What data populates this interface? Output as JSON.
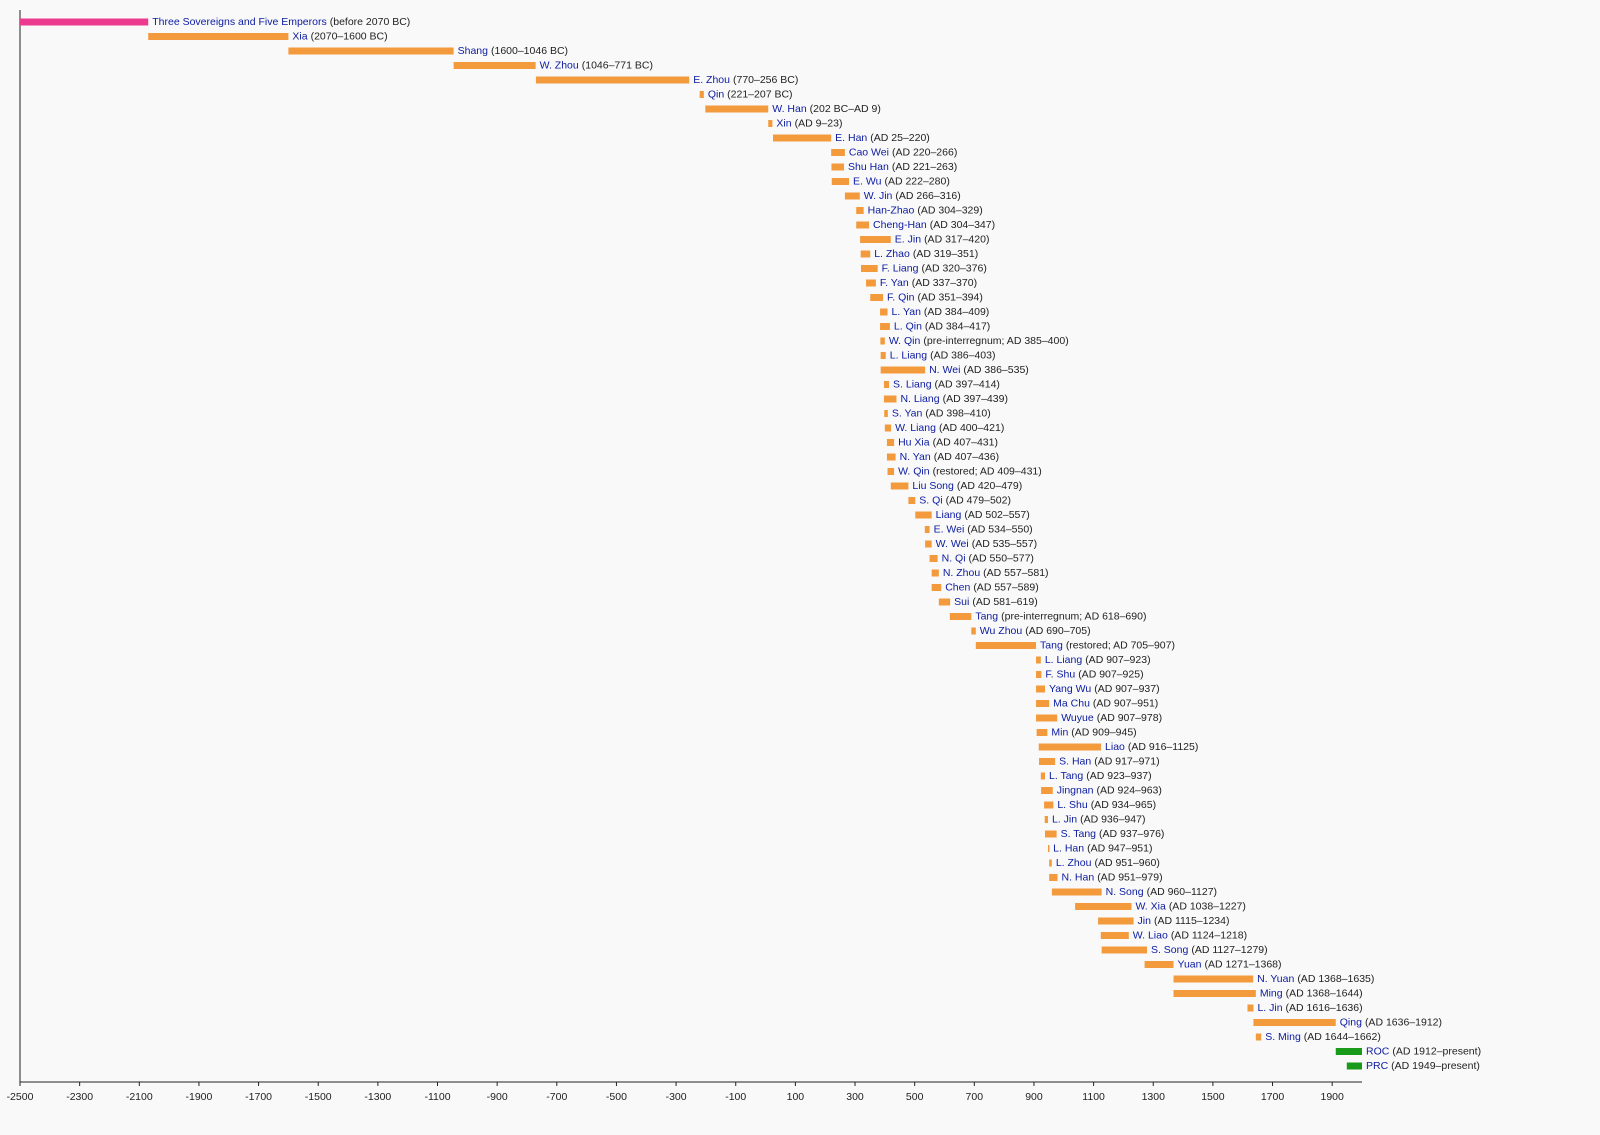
{
  "chart_data": {
    "type": "timeline",
    "xlim": [
      -2500,
      2000
    ],
    "xticks": [
      -2500,
      -2300,
      -2100,
      -1900,
      -1700,
      -1500,
      -1300,
      -1100,
      -900,
      -700,
      -500,
      -300,
      -100,
      100,
      300,
      500,
      700,
      900,
      1100,
      1300,
      1500,
      1700,
      1900
    ],
    "rows": [
      {
        "name": "Three Sovereigns and Five Emperors",
        "detail": "(before 2070 BC)",
        "start": -2500,
        "end": -2070,
        "color": "#ec3a8e"
      },
      {
        "name": "Xia",
        "detail": "(2070–1600 BC)",
        "start": -2070,
        "end": -1600,
        "color": "#f39a3c"
      },
      {
        "name": "Shang",
        "detail": "(1600–1046 BC)",
        "start": -1600,
        "end": -1046,
        "color": "#f39a3c"
      },
      {
        "name": "W. Zhou",
        "detail": "(1046–771 BC)",
        "start": -1046,
        "end": -771,
        "color": "#f39a3c"
      },
      {
        "name": "E. Zhou",
        "detail": "(770–256 BC)",
        "start": -770,
        "end": -256,
        "color": "#f39a3c"
      },
      {
        "name": "Qin",
        "detail": "(221–207 BC)",
        "start": -221,
        "end": -207,
        "color": "#f39a3c"
      },
      {
        "name": "W. Han",
        "detail": "(202 BC–AD 9)",
        "start": -202,
        "end": 9,
        "color": "#f39a3c"
      },
      {
        "name": "Xin",
        "detail": "(AD 9–23)",
        "start": 9,
        "end": 23,
        "color": "#f39a3c"
      },
      {
        "name": "E. Han",
        "detail": "(AD 25–220)",
        "start": 25,
        "end": 220,
        "color": "#f39a3c"
      },
      {
        "name": "Cao Wei",
        "detail": "(AD 220–266)",
        "start": 220,
        "end": 266,
        "color": "#f39a3c"
      },
      {
        "name": "Shu Han",
        "detail": "(AD 221–263)",
        "start": 221,
        "end": 263,
        "color": "#f39a3c"
      },
      {
        "name": "E. Wu",
        "detail": "(AD 222–280)",
        "start": 222,
        "end": 280,
        "color": "#f39a3c"
      },
      {
        "name": "W. Jin",
        "detail": "(AD 266–316)",
        "start": 266,
        "end": 316,
        "color": "#f39a3c"
      },
      {
        "name": "Han-Zhao",
        "detail": "(AD 304–329)",
        "start": 304,
        "end": 329,
        "color": "#f39a3c"
      },
      {
        "name": "Cheng-Han",
        "detail": "(AD 304–347)",
        "start": 304,
        "end": 347,
        "color": "#f39a3c"
      },
      {
        "name": "E. Jin",
        "detail": "(AD 317–420)",
        "start": 317,
        "end": 420,
        "color": "#f39a3c"
      },
      {
        "name": "L. Zhao",
        "detail": "(AD 319–351)",
        "start": 319,
        "end": 351,
        "color": "#f39a3c"
      },
      {
        "name": "F. Liang",
        "detail": "(AD 320–376)",
        "start": 320,
        "end": 376,
        "color": "#f39a3c"
      },
      {
        "name": "F. Yan",
        "detail": "(AD 337–370)",
        "start": 337,
        "end": 370,
        "color": "#f39a3c"
      },
      {
        "name": "F. Qin",
        "detail": "(AD 351–394)",
        "start": 351,
        "end": 394,
        "color": "#f39a3c"
      },
      {
        "name": "L. Yan",
        "detail": "(AD 384–409)",
        "start": 384,
        "end": 409,
        "color": "#f39a3c"
      },
      {
        "name": "L. Qin",
        "detail": "(AD 384–417)",
        "start": 384,
        "end": 417,
        "color": "#f39a3c"
      },
      {
        "name": "W. Qin",
        "detail": "(pre-interregnum; AD 385–400)",
        "start": 385,
        "end": 400,
        "color": "#f39a3c"
      },
      {
        "name": "L. Liang",
        "detail": "(AD 386–403)",
        "start": 386,
        "end": 403,
        "color": "#f39a3c"
      },
      {
        "name": "N. Wei",
        "detail": "(AD 386–535)",
        "start": 386,
        "end": 535,
        "color": "#f39a3c"
      },
      {
        "name": "S. Liang",
        "detail": "(AD 397–414)",
        "start": 397,
        "end": 414,
        "color": "#f39a3c"
      },
      {
        "name": "N. Liang",
        "detail": "(AD 397–439)",
        "start": 397,
        "end": 439,
        "color": "#f39a3c"
      },
      {
        "name": "S. Yan",
        "detail": "(AD 398–410)",
        "start": 398,
        "end": 410,
        "color": "#f39a3c"
      },
      {
        "name": "W. Liang",
        "detail": "(AD 400–421)",
        "start": 400,
        "end": 421,
        "color": "#f39a3c"
      },
      {
        "name": "Hu Xia",
        "detail": "(AD 407–431)",
        "start": 407,
        "end": 431,
        "color": "#f39a3c"
      },
      {
        "name": "N. Yan",
        "detail": "(AD 407–436)",
        "start": 407,
        "end": 436,
        "color": "#f39a3c"
      },
      {
        "name": "W. Qin",
        "detail": "(restored; AD 409–431)",
        "start": 409,
        "end": 431,
        "color": "#f39a3c"
      },
      {
        "name": "Liu Song",
        "detail": "(AD 420–479)",
        "start": 420,
        "end": 479,
        "color": "#f39a3c"
      },
      {
        "name": "S. Qi",
        "detail": "(AD 479–502)",
        "start": 479,
        "end": 502,
        "color": "#f39a3c"
      },
      {
        "name": "Liang",
        "detail": "(AD 502–557)",
        "start": 502,
        "end": 557,
        "color": "#f39a3c"
      },
      {
        "name": "E. Wei",
        "detail": "(AD 534–550)",
        "start": 534,
        "end": 550,
        "color": "#f39a3c"
      },
      {
        "name": "W. Wei",
        "detail": "(AD 535–557)",
        "start": 535,
        "end": 557,
        "color": "#f39a3c"
      },
      {
        "name": "N. Qi",
        "detail": "(AD 550–577)",
        "start": 550,
        "end": 577,
        "color": "#f39a3c"
      },
      {
        "name": "N. Zhou",
        "detail": "(AD 557–581)",
        "start": 557,
        "end": 581,
        "color": "#f39a3c"
      },
      {
        "name": "Chen",
        "detail": "(AD 557–589)",
        "start": 557,
        "end": 589,
        "color": "#f39a3c"
      },
      {
        "name": "Sui",
        "detail": "(AD 581–619)",
        "start": 581,
        "end": 619,
        "color": "#f39a3c"
      },
      {
        "name": "Tang",
        "detail": "(pre-interregnum; AD 618–690)",
        "start": 618,
        "end": 690,
        "color": "#f39a3c"
      },
      {
        "name": "Wu Zhou",
        "detail": "(AD 690–705)",
        "start": 690,
        "end": 705,
        "color": "#f39a3c"
      },
      {
        "name": "Tang",
        "detail": "(restored; AD 705–907)",
        "start": 705,
        "end": 907,
        "color": "#f39a3c"
      },
      {
        "name": "L. Liang",
        "detail": "(AD 907–923)",
        "start": 907,
        "end": 923,
        "color": "#f39a3c"
      },
      {
        "name": "F. Shu",
        "detail": "(AD 907–925)",
        "start": 907,
        "end": 925,
        "color": "#f39a3c"
      },
      {
        "name": "Yang Wu",
        "detail": "(AD 907–937)",
        "start": 907,
        "end": 937,
        "color": "#f39a3c"
      },
      {
        "name": "Ma Chu",
        "detail": "(AD 907–951)",
        "start": 907,
        "end": 951,
        "color": "#f39a3c"
      },
      {
        "name": "Wuyue",
        "detail": "(AD 907–978)",
        "start": 907,
        "end": 978,
        "color": "#f39a3c"
      },
      {
        "name": "Min",
        "detail": "(AD 909–945)",
        "start": 909,
        "end": 945,
        "color": "#f39a3c"
      },
      {
        "name": "Liao",
        "detail": "(AD 916–1125)",
        "start": 916,
        "end": 1125,
        "color": "#f39a3c"
      },
      {
        "name": "S. Han",
        "detail": "(AD 917–971)",
        "start": 917,
        "end": 971,
        "color": "#f39a3c"
      },
      {
        "name": "L. Tang",
        "detail": "(AD 923–937)",
        "start": 923,
        "end": 937,
        "color": "#f39a3c"
      },
      {
        "name": "Jingnan",
        "detail": "(AD 924–963)",
        "start": 924,
        "end": 963,
        "color": "#f39a3c"
      },
      {
        "name": "L. Shu",
        "detail": "(AD 934–965)",
        "start": 934,
        "end": 965,
        "color": "#f39a3c"
      },
      {
        "name": "L. Jin",
        "detail": "(AD 936–947)",
        "start": 936,
        "end": 947,
        "color": "#f39a3c"
      },
      {
        "name": "S. Tang",
        "detail": "(AD 937–976)",
        "start": 937,
        "end": 976,
        "color": "#f39a3c"
      },
      {
        "name": "L. Han",
        "detail": "(AD 947–951)",
        "start": 947,
        "end": 951,
        "color": "#f39a3c"
      },
      {
        "name": "L. Zhou",
        "detail": "(AD 951–960)",
        "start": 951,
        "end": 960,
        "color": "#f39a3c"
      },
      {
        "name": "N. Han",
        "detail": "(AD 951–979)",
        "start": 951,
        "end": 979,
        "color": "#f39a3c"
      },
      {
        "name": "N. Song",
        "detail": "(AD 960–1127)",
        "start": 960,
        "end": 1127,
        "color": "#f39a3c"
      },
      {
        "name": "W. Xia",
        "detail": "(AD 1038–1227)",
        "start": 1038,
        "end": 1227,
        "color": "#f39a3c"
      },
      {
        "name": "Jin",
        "detail": "(AD 1115–1234)",
        "start": 1115,
        "end": 1234,
        "color": "#f39a3c"
      },
      {
        "name": "W. Liao",
        "detail": "(AD 1124–1218)",
        "start": 1124,
        "end": 1218,
        "color": "#f39a3c"
      },
      {
        "name": "S. Song",
        "detail": "(AD 1127–1279)",
        "start": 1127,
        "end": 1279,
        "color": "#f39a3c"
      },
      {
        "name": "Yuan",
        "detail": "(AD 1271–1368)",
        "start": 1271,
        "end": 1368,
        "color": "#f39a3c"
      },
      {
        "name": "N. Yuan",
        "detail": "(AD 1368–1635)",
        "start": 1368,
        "end": 1635,
        "color": "#f39a3c"
      },
      {
        "name": "Ming",
        "detail": "(AD 1368–1644)",
        "start": 1368,
        "end": 1644,
        "color": "#f39a3c"
      },
      {
        "name": "L. Jin",
        "detail": "(AD 1616–1636)",
        "start": 1616,
        "end": 1636,
        "color": "#f39a3c"
      },
      {
        "name": "Qing",
        "detail": "(AD 1636–1912)",
        "start": 1636,
        "end": 1912,
        "color": "#f39a3c"
      },
      {
        "name": "S. Ming",
        "detail": "(AD 1644–1662)",
        "start": 1644,
        "end": 1662,
        "color": "#f39a3c"
      },
      {
        "name": "ROC",
        "detail": "(AD 1912–present)",
        "start": 1912,
        "end": 2000,
        "color": "#1a9a1a"
      },
      {
        "name": "PRC",
        "detail": "(AD 1949–present)",
        "start": 1949,
        "end": 2000,
        "color": "#1a9a1a"
      }
    ]
  }
}
